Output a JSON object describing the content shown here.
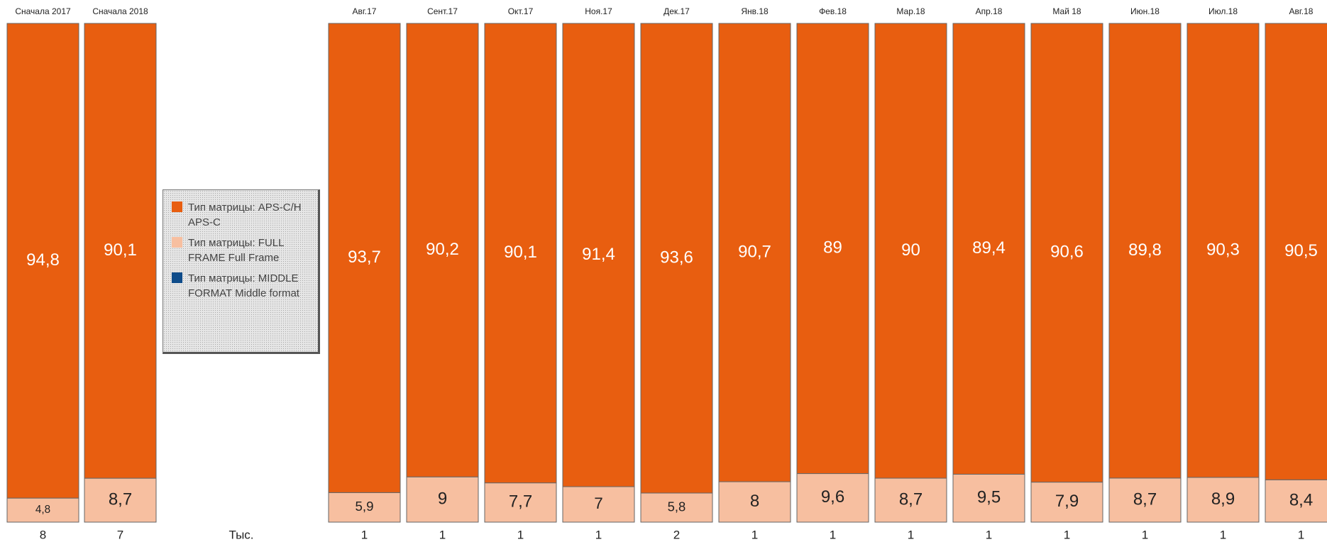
{
  "chart_data": {
    "type": "stacked_bar_100",
    "categories": [
      "Сначала 2017",
      "Сначала 2018",
      "Авг.17",
      "Сент.17",
      "Окт.17",
      "Ноя.17",
      "Дек.17",
      "Янв.18",
      "Фев.18",
      "Мар.18",
      "Апр.18",
      "Май 18",
      "Июн.18",
      "Июл.18",
      "Авг.18"
    ],
    "series": [
      {
        "name": "Тип матрицы: APS-C/H APS-C",
        "color": "#e85e10",
        "values": [
          94.8,
          90.1,
          93.7,
          90.2,
          90.1,
          91.4,
          93.6,
          90.7,
          89,
          90,
          89.4,
          90.6,
          89.8,
          90.3,
          90.5
        ],
        "value_labels": [
          "94,8",
          "90,1",
          "93,7",
          "90,2",
          "90,1",
          "91,4",
          "93,6",
          "90,7",
          "89",
          "90",
          "89,4",
          "90,6",
          "89,8",
          "90,3",
          "90,5"
        ]
      },
      {
        "name": "Тип матрицы: FULL FRAME Full Frame",
        "color": "#f7bfa0",
        "values": [
          4.8,
          8.7,
          5.9,
          9,
          7.7,
          7,
          5.8,
          8,
          9.6,
          8.7,
          9.5,
          7.9,
          8.7,
          8.9,
          8.4
        ],
        "value_labels": [
          "4,8",
          "8,7",
          "5,9",
          "9",
          "7,7",
          "7",
          "5,8",
          "8",
          "9,6",
          "8,7",
          "9,5",
          "7,9",
          "8,7",
          "8,9",
          "8,4"
        ]
      },
      {
        "name": "Тип матрицы: MIDDLE FORMAT Middle format",
        "color": "#0f4c8a",
        "values": [
          null,
          null,
          null,
          null,
          null,
          null,
          null,
          null,
          null,
          null,
          null,
          null,
          null,
          null,
          null
        ]
      }
    ],
    "totals": [
      8,
      7,
      1,
      1,
      1,
      1,
      2,
      1,
      1,
      1,
      1,
      1,
      1,
      1,
      1
    ],
    "totals_unit": "Тыс.",
    "legend": "left"
  }
}
